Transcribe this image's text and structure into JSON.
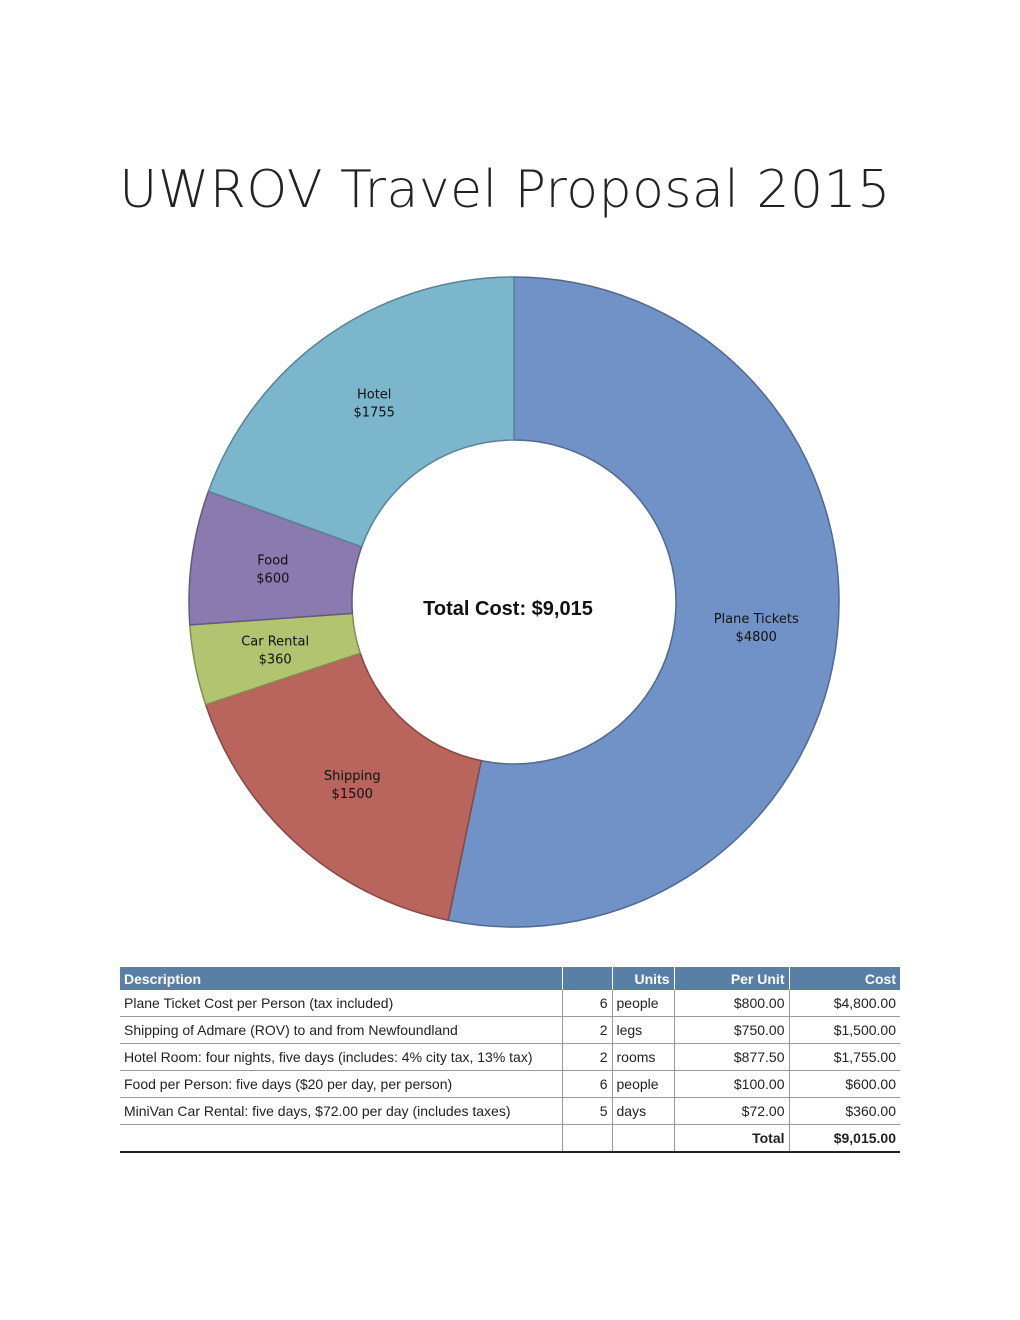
{
  "title": "UWROV Travel Proposal 2015",
  "chart_data": {
    "type": "pie",
    "donut": true,
    "center_label": "Total Cost: $9,015",
    "slices": [
      {
        "label": "Plane Tickets",
        "value_label": "$4800",
        "value": 4800,
        "color": "#7092c6"
      },
      {
        "label": "Shipping",
        "value_label": "$1500",
        "value": 1500,
        "color": "#b9645c"
      },
      {
        "label": "Car Rental",
        "value_label": "$360",
        "value": 360,
        "color": "#b3c470"
      },
      {
        "label": "Food",
        "value_label": "$600",
        "value": 600,
        "color": "#8b7aaf"
      },
      {
        "label": "Hotel",
        "value_label": "$1755",
        "value": 1755,
        "color": "#7bb6cc"
      }
    ]
  },
  "table": {
    "headers": {
      "description": "Description",
      "count": "",
      "units": "Units",
      "per_unit": "Per Unit",
      "cost": "Cost"
    },
    "rows": [
      {
        "description": "Plane Ticket Cost per Person (tax included)",
        "count": "6",
        "units": "people",
        "per_unit": "$800.00",
        "cost": "$4,800.00"
      },
      {
        "description": "Shipping of Admare (ROV) to and from Newfoundland",
        "count": "2",
        "units": "legs",
        "per_unit": "$750.00",
        "cost": "$1,500.00"
      },
      {
        "description": "Hotel Room: four nights, five days (includes: 4% city tax, 13% tax)",
        "count": "2",
        "units": "rooms",
        "per_unit": "$877.50",
        "cost": "$1,755.00"
      },
      {
        "description": "Food per Person: five days ($20 per day, per person)",
        "count": "6",
        "units": "people",
        "per_unit": "$100.00",
        "cost": "$600.00"
      },
      {
        "description": "MiniVan Car Rental: five days, $72.00 per day (includes taxes)",
        "count": "5",
        "units": "days",
        "per_unit": "$72.00",
        "cost": "$360.00"
      }
    ],
    "total_label": "Total",
    "total_value": "$9,015.00"
  }
}
